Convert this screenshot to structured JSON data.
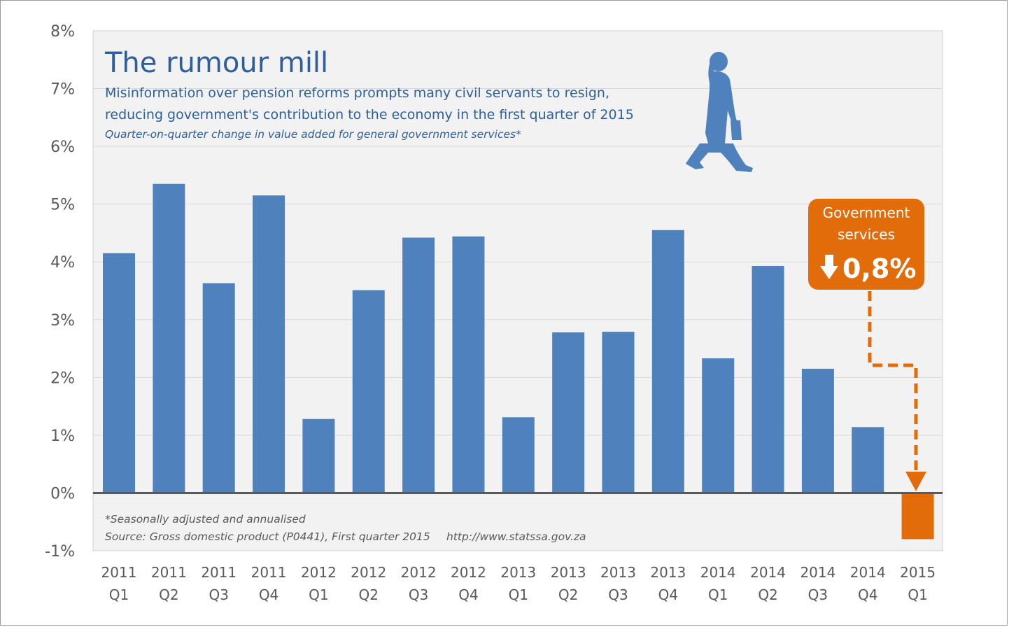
{
  "colors": {
    "bar": "#4f81bd",
    "highlight": "#e36c0a",
    "plot_bg": "#f2f2f2",
    "title": "#2f5f9a",
    "axis_text": "#595959",
    "gridline": "#d9d9d9",
    "zero_line": "#595959"
  },
  "icons": {
    "figure": "walking-woman-icon",
    "arrow": "down-arrow-icon"
  },
  "chart_data": {
    "type": "bar",
    "title": "The rumour mill",
    "subtitle_lines": [
      "Misinformation over pension reforms prompts many civil servants to resign,",
      "reducing government's contribution to the economy in the first quarter of 2015"
    ],
    "description": "Quarter-on-quarter change in value added for general government services*",
    "categories": [
      [
        "2011",
        "Q1"
      ],
      [
        "2011",
        "Q2"
      ],
      [
        "2011",
        "Q3"
      ],
      [
        "2011",
        "Q4"
      ],
      [
        "2012",
        "Q1"
      ],
      [
        "2012",
        "Q2"
      ],
      [
        "2012",
        "Q3"
      ],
      [
        "2012",
        "Q4"
      ],
      [
        "2013",
        "Q1"
      ],
      [
        "2013",
        "Q2"
      ],
      [
        "2013",
        "Q3"
      ],
      [
        "2013",
        "Q4"
      ],
      [
        "2014",
        "Q1"
      ],
      [
        "2014",
        "Q2"
      ],
      [
        "2014",
        "Q3"
      ],
      [
        "2014",
        "Q4"
      ],
      [
        "2015",
        "Q1"
      ]
    ],
    "values": [
      4.15,
      5.35,
      3.63,
      5.15,
      1.28,
      3.51,
      4.42,
      4.44,
      1.31,
      2.78,
      2.79,
      4.55,
      2.33,
      3.93,
      2.15,
      1.14,
      -0.8
    ],
    "highlight_index": 16,
    "ylim": [
      -1,
      8
    ],
    "yticks": [
      -1,
      0,
      1,
      2,
      3,
      4,
      5,
      6,
      7,
      8
    ],
    "ytick_labels": [
      "-1%",
      "0%",
      "1%",
      "2%",
      "3%",
      "4%",
      "5%",
      "6%",
      "7%",
      "8%"
    ],
    "grid": true,
    "callout": {
      "line1": "Government",
      "line2": "services",
      "value": "0,8%"
    },
    "footnote": "*Seasonally adjusted and annualised",
    "source": "Source: Gross domestic product (P0441), First quarter 2015",
    "url": "http://www.statssa.gov.za"
  }
}
